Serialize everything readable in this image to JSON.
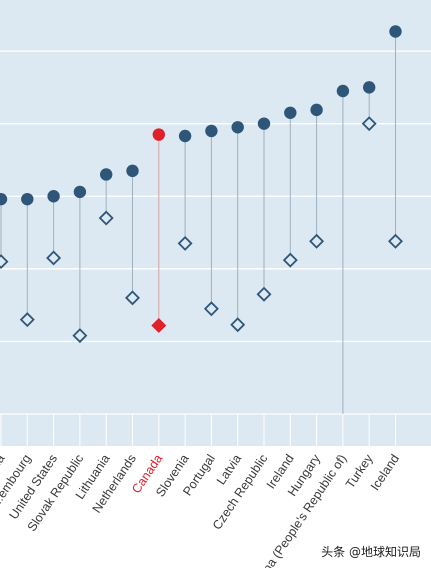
{
  "chart_data": {
    "type": "dot-range",
    "title": "",
    "xlabel": "",
    "ylabel": "",
    "grid": true,
    "ylim": [
      0,
      5.5
    ],
    "categories": [
      "...ia",
      "...embourg",
      "United States",
      "Slovak Republic",
      "Lithuania",
      "Netherlands",
      "Canada",
      "Slovenia",
      "Portugal",
      "Latvia",
      "Czech Republic",
      "Ireland",
      "Hungary",
      "China (People's Republic of)",
      "Turkey",
      "Iceland"
    ],
    "highlight_category": "Canada",
    "series": [
      {
        "marker": "filled-circle",
        "values": [
          2.96,
          2.96,
          3.0,
          3.06,
          3.3,
          3.35,
          3.85,
          3.83,
          3.9,
          3.95,
          4.0,
          4.15,
          4.19,
          4.45,
          4.5,
          5.27
        ]
      },
      {
        "marker": "hollow-diamond",
        "values": [
          2.1,
          1.3,
          2.15,
          1.08,
          2.7,
          1.6,
          1.22,
          2.35,
          1.45,
          1.23,
          1.65,
          2.12,
          2.38,
          null,
          4.0,
          2.38
        ]
      }
    ],
    "colors": {
      "background": "#dde9f2",
      "grid": "#ffffff",
      "series": "#2e5679",
      "highlight": "#e0202a",
      "label": "#3a3a3a",
      "range_line": "#9fb0bf"
    }
  },
  "watermark": "头条 @地球知识局"
}
